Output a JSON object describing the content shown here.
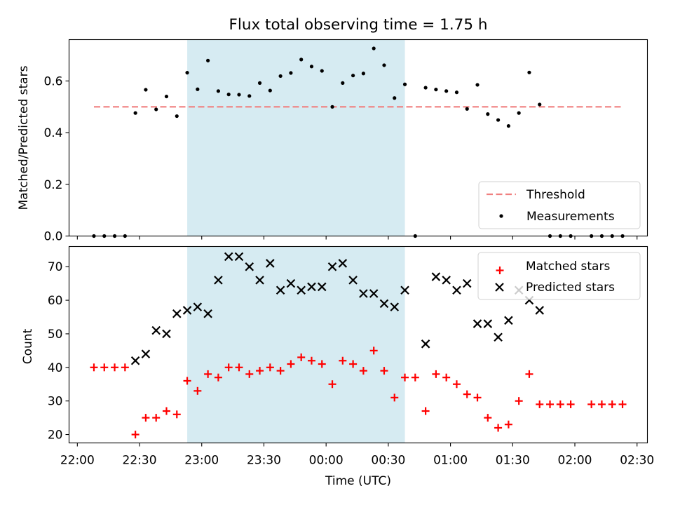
{
  "chart_data": [
    {
      "type": "scatter",
      "title": "Flux total observing time = 1.75 h",
      "xlabel": "",
      "ylabel": "Matched/Predicted stars",
      "xlim": [
        "21:56",
        "02:35"
      ],
      "ylim": [
        0,
        0.76
      ],
      "yticks": [
        0.0,
        0.2,
        0.4,
        0.6
      ],
      "ytick_labels": [
        "0.0",
        "0.2",
        "0.4",
        "0.6"
      ],
      "shaded_interval": [
        "22:53",
        "00:38"
      ],
      "grid": false,
      "legend_position": "lower right",
      "threshold": {
        "name": "Threshold",
        "value": 0.5,
        "x_range": [
          "22:08",
          "02:23"
        ],
        "color": "#f08080"
      },
      "series": [
        {
          "name": "Measurements",
          "marker": "dot",
          "color": "#000000",
          "x": [
            "22:08",
            "22:13",
            "22:18",
            "22:23",
            "22:28",
            "22:33",
            "22:38",
            "22:43",
            "22:48",
            "22:53",
            "22:58",
            "23:03",
            "23:08",
            "23:13",
            "23:18",
            "23:23",
            "23:28",
            "23:33",
            "23:38",
            "23:43",
            "23:48",
            "23:53",
            "23:58",
            "00:03",
            "00:08",
            "00:13",
            "00:18",
            "00:23",
            "00:28",
            "00:33",
            "00:38",
            "00:43",
            "00:48",
            "00:53",
            "00:58",
            "01:03",
            "01:08",
            "01:13",
            "01:18",
            "01:23",
            "01:28",
            "01:33",
            "01:38",
            "01:43",
            "01:48",
            "01:53",
            "01:58",
            "02:08",
            "02:13",
            "02:18",
            "02:23"
          ],
          "y": [
            0.0,
            0.0,
            0.0,
            0.0,
            0.476,
            0.566,
            0.49,
            0.54,
            0.464,
            0.632,
            0.568,
            0.679,
            0.561,
            0.548,
            0.547,
            0.542,
            0.592,
            0.563,
            0.619,
            0.631,
            0.683,
            0.656,
            0.639,
            0.5,
            0.592,
            0.621,
            0.629,
            0.726,
            0.661,
            0.534,
            0.587,
            0.0,
            0.574,
            0.567,
            0.561,
            0.556,
            0.492,
            0.585,
            0.472,
            0.449,
            0.426,
            0.476,
            0.633,
            0.509,
            0.0,
            0.0,
            0.0,
            0.0,
            0.0,
            0.0,
            0.0
          ]
        }
      ]
    },
    {
      "type": "scatter",
      "title": "",
      "xlabel": "Time (UTC)",
      "ylabel": "Count",
      "xlim": [
        "21:56",
        "02:35"
      ],
      "ylim": [
        17.5,
        76
      ],
      "xticks": [
        "22:00",
        "22:30",
        "23:00",
        "23:30",
        "00:00",
        "00:30",
        "01:00",
        "01:30",
        "02:00",
        "02:30"
      ],
      "yticks": [
        20,
        30,
        40,
        50,
        60,
        70
      ],
      "ytick_labels": [
        "20",
        "30",
        "40",
        "50",
        "60",
        "70"
      ],
      "shaded_interval": [
        "22:53",
        "00:38"
      ],
      "grid": false,
      "legend_position": "upper right",
      "series": [
        {
          "name": "Matched stars",
          "marker": "plus",
          "color": "#ff0000",
          "x": [
            "22:08",
            "22:13",
            "22:18",
            "22:23",
            "22:28",
            "22:33",
            "22:38",
            "22:43",
            "22:48",
            "22:53",
            "22:58",
            "23:03",
            "23:08",
            "23:13",
            "23:18",
            "23:23",
            "23:28",
            "23:33",
            "23:38",
            "23:43",
            "23:48",
            "23:53",
            "23:58",
            "00:03",
            "00:08",
            "00:13",
            "00:18",
            "00:23",
            "00:28",
            "00:33",
            "00:38",
            "00:43",
            "00:48",
            "00:53",
            "00:58",
            "01:03",
            "01:08",
            "01:13",
            "01:18",
            "01:23",
            "01:28",
            "01:33",
            "01:38",
            "01:43",
            "01:48",
            "01:53",
            "01:58",
            "02:08",
            "02:13",
            "02:18",
            "02:23"
          ],
          "y": [
            40,
            40,
            40,
            40,
            20,
            25,
            25,
            27,
            26,
            36,
            33,
            38,
            37,
            40,
            40,
            38,
            39,
            40,
            39,
            41,
            43,
            42,
            41,
            35,
            42,
            41,
            39,
            45,
            39,
            31,
            37,
            37,
            27,
            38,
            37,
            35,
            32,
            31,
            25,
            22,
            23,
            30,
            38,
            29,
            29,
            29,
            29,
            29,
            29,
            29,
            29
          ]
        },
        {
          "name": "Predicted stars",
          "marker": "x",
          "color": "#000000",
          "x": [
            "22:28",
            "22:33",
            "22:38",
            "22:43",
            "22:48",
            "22:53",
            "22:58",
            "23:03",
            "23:08",
            "23:13",
            "23:18",
            "23:23",
            "23:28",
            "23:33",
            "23:38",
            "23:43",
            "23:48",
            "23:53",
            "23:58",
            "00:03",
            "00:08",
            "00:13",
            "00:18",
            "00:23",
            "00:28",
            "00:33",
            "00:38",
            "00:48",
            "00:53",
            "00:58",
            "01:03",
            "01:08",
            "01:13",
            "01:18",
            "01:23",
            "01:28",
            "01:33",
            "01:38",
            "01:43"
          ],
          "y": [
            42,
            44,
            51,
            50,
            56,
            57,
            58,
            56,
            66,
            73,
            73,
            70,
            66,
            71,
            63,
            65,
            63,
            64,
            64,
            70,
            71,
            66,
            62,
            62,
            59,
            58,
            63,
            47,
            67,
            66,
            63,
            65,
            53,
            53,
            49,
            54,
            63,
            60,
            57
          ]
        }
      ]
    }
  ]
}
